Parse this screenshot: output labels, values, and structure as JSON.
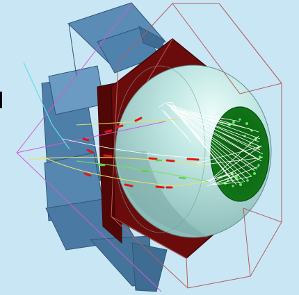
{
  "scene": {
    "background": "#c9e6f5",
    "colors": {
      "panel_fill": "#4d7fa8",
      "panel_edge": "#2f5777",
      "hexagon_fill": "#6b0c0c",
      "hexagon_edge": "#3f0505",
      "sphere_fill": "#a5d3cf",
      "sphere_highlight": "#d9f6f1",
      "detector_fill": "#0c6e12",
      "detector_hits": "#5bf05b",
      "wireframe": "#b65d5d",
      "ray_white": "#ffffff",
      "track_yellow": "#e6e16a",
      "track_magenta": "#d05bd0",
      "track_cyan": "#5fe0e6",
      "track_green": "#7ee05a",
      "marker_red": "#e01616"
    }
  }
}
